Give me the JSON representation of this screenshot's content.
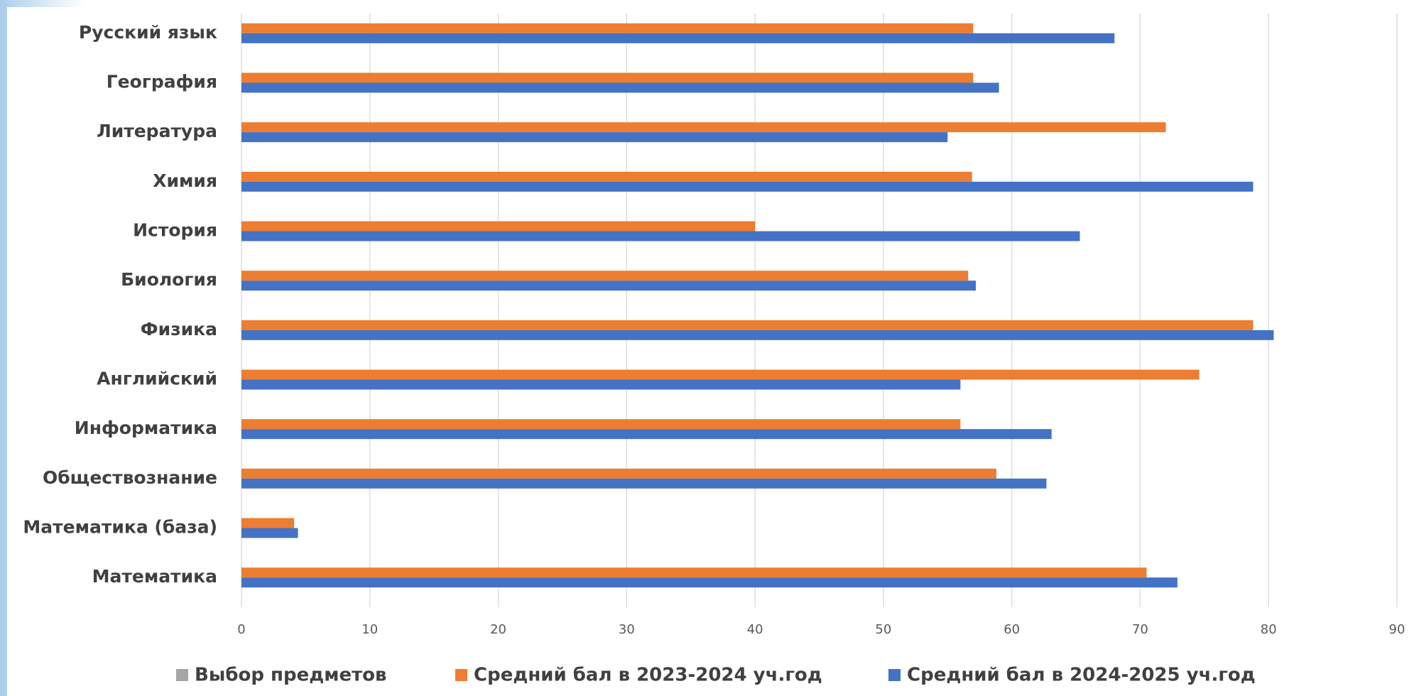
{
  "chart_data": {
    "type": "bar",
    "orientation": "horizontal",
    "categories": [
      "Русский язык",
      "География",
      "Литература",
      "Химия",
      "История",
      "Биология",
      "Физика",
      "Английский",
      "Информатика",
      "Обществознание",
      "Математика (база)",
      "Математика"
    ],
    "series": [
      {
        "name": "Выбор предметов",
        "color": "#a5a5a5",
        "values": [
          null,
          null,
          null,
          null,
          null,
          null,
          null,
          null,
          null,
          null,
          null,
          null
        ]
      },
      {
        "name": "Средний бал в  2023-2024 уч.год",
        "color": "#ed7d31",
        "values": [
          57,
          57,
          72,
          56.9,
          40,
          56.6,
          78.8,
          74.6,
          56,
          58.8,
          4.1,
          70.5
        ]
      },
      {
        "name": "Средний бал в 2024-2025 уч.год",
        "color": "#4472c4",
        "values": [
          68,
          59,
          55,
          78.8,
          65.3,
          57.2,
          80.4,
          56,
          63.1,
          62.7,
          4.4,
          72.9
        ]
      }
    ],
    "xlim": [
      0,
      90
    ],
    "xticks": [
      0,
      10,
      20,
      30,
      40,
      50,
      60,
      70,
      80,
      90
    ],
    "grid": true
  }
}
